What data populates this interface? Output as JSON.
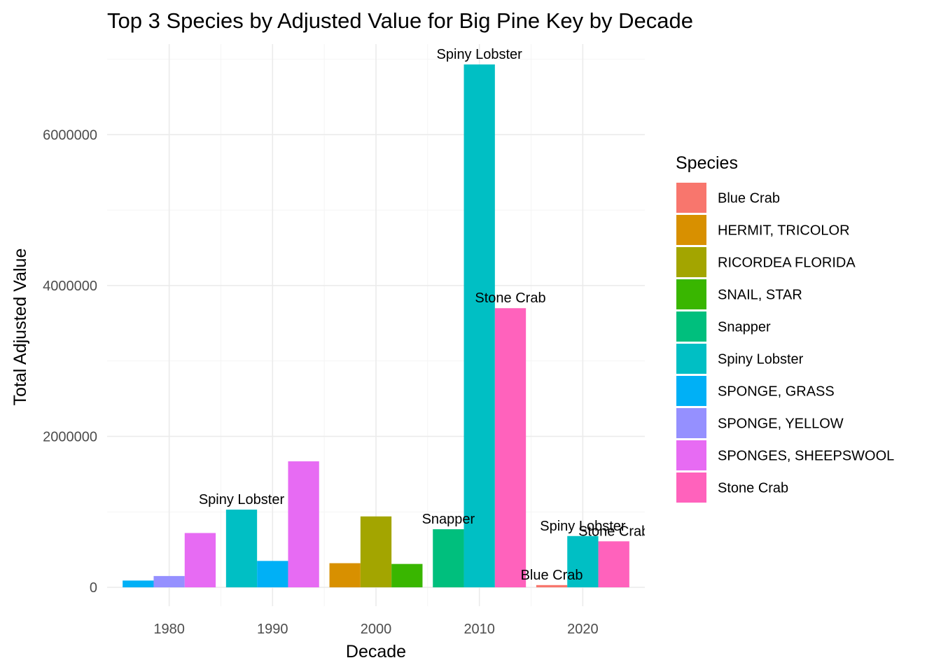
{
  "chart_data": {
    "type": "bar",
    "title": "Top 3 Species by Adjusted Value for Big Pine Key by Decade",
    "xlabel": "Decade",
    "ylabel": "Total Adjusted Value",
    "categories": [
      "1980",
      "1990",
      "2000",
      "2010",
      "2020"
    ],
    "y_ticks": [
      "0",
      "2000000",
      "4000000",
      "6000000"
    ],
    "ylim": [
      -250000,
      7200000
    ],
    "grid": true,
    "legend": {
      "title": "Species",
      "position": "right",
      "entries": [
        {
          "name": "Blue Crab",
          "color": "#F8766D"
        },
        {
          "name": "HERMIT, TRICOLOR",
          "color": "#D89000"
        },
        {
          "name": "RICORDEA FLORIDA",
          "color": "#A3A500"
        },
        {
          "name": "SNAIL, STAR",
          "color": "#39B600"
        },
        {
          "name": "Snapper",
          "color": "#00BF7D"
        },
        {
          "name": "Spiny Lobster",
          "color": "#00BFC4"
        },
        {
          "name": "SPONGE, GRASS",
          "color": "#00B0F6"
        },
        {
          "name": "SPONGE, YELLOW",
          "color": "#9590FF"
        },
        {
          "name": "SPONGES, SHEEPSWOOL",
          "color": "#E76BF3"
        },
        {
          "name": "Stone Crab",
          "color": "#FF62BC"
        }
      ]
    },
    "groups": [
      {
        "decade": "1980",
        "bars": [
          {
            "species": "SPONGE, GRASS",
            "value": 90000
          },
          {
            "species": "SPONGE, YELLOW",
            "value": 150000
          },
          {
            "species": "SPONGES, SHEEPSWOOL",
            "value": 720000
          }
        ]
      },
      {
        "decade": "1990",
        "bars": [
          {
            "species": "Spiny Lobster",
            "value": 1030000,
            "label": "Spiny Lobster"
          },
          {
            "species": "SPONGE, GRASS",
            "value": 350000
          },
          {
            "species": "SPONGES, SHEEPSWOOL",
            "value": 1670000
          }
        ]
      },
      {
        "decade": "2000",
        "bars": [
          {
            "species": "HERMIT, TRICOLOR",
            "value": 320000
          },
          {
            "species": "RICORDEA FLORIDA",
            "value": 940000
          },
          {
            "species": "SNAIL, STAR",
            "value": 310000
          }
        ]
      },
      {
        "decade": "2010",
        "bars": [
          {
            "species": "Snapper",
            "value": 770000,
            "label": "Snapper"
          },
          {
            "species": "Spiny Lobster",
            "value": 6930000,
            "label": "Spiny Lobster"
          },
          {
            "species": "Stone Crab",
            "value": 3700000,
            "label": "Stone Crab"
          }
        ]
      },
      {
        "decade": "2020",
        "bars": [
          {
            "species": "Blue Crab",
            "value": 30000,
            "label": "Blue Crab"
          },
          {
            "species": "Spiny Lobster",
            "value": 680000,
            "label": "Spiny Lobster"
          },
          {
            "species": "Stone Crab",
            "value": 610000,
            "label": "Stone Crab"
          }
        ]
      }
    ]
  }
}
